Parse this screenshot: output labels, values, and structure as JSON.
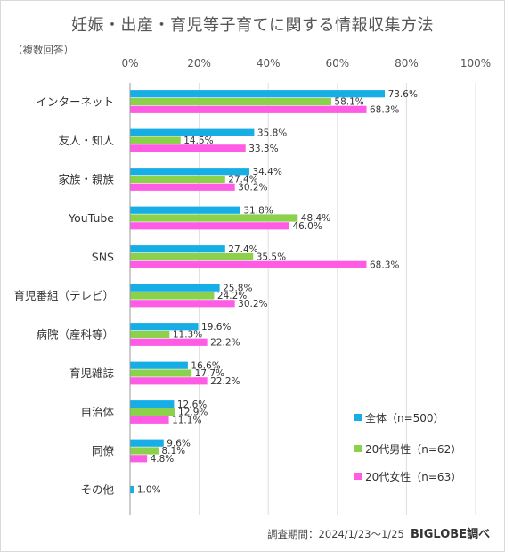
{
  "title": "妊娠・出産・育児等子育てに関する情報収集方法",
  "note": "（複数回答）",
  "footer": {
    "period": "調査期間：2024/1/23〜1/25",
    "brand": "BIGLOBE調べ"
  },
  "colors": {
    "total": "#17aee6",
    "male20s": "#8cd14b",
    "female20s": "#ff5ce6",
    "grid": "#dedede",
    "axis": "#999999",
    "text": "#444444"
  },
  "chart_data": {
    "type": "bar",
    "orientation": "horizontal",
    "title": "妊娠・出産・育児等子育てに関する情報収集方法",
    "xlim": [
      0,
      100
    ],
    "x_ticks": [
      "0%",
      "20%",
      "40%",
      "60%",
      "80%",
      "100%"
    ],
    "grid": true,
    "legend_position": "bottom-right",
    "categories": [
      "インターネット",
      "友人・知人",
      "家族・親族",
      "YouTube",
      "SNS",
      "育児番組（テレビ）",
      "病院（産科等）",
      "育児雑誌",
      "自治体",
      "同僚",
      "その他"
    ],
    "series": [
      {
        "name": "全体（n=500）",
        "color": "#17aee6",
        "values": [
          73.6,
          35.8,
          34.4,
          31.8,
          27.4,
          25.8,
          19.6,
          16.6,
          12.6,
          9.6,
          1.0
        ],
        "labels": [
          "73.6%",
          "35.8%",
          "34.4%",
          "31.8%",
          "27.4%",
          "25.8%",
          "19.6%",
          "16.6%",
          "12.6%",
          "9.6%",
          "1.0%"
        ]
      },
      {
        "name": "20代男性（n=62）",
        "color": "#8cd14b",
        "values": [
          58.1,
          14.5,
          27.4,
          48.4,
          35.5,
          24.2,
          11.3,
          17.7,
          12.9,
          8.1,
          null
        ],
        "labels": [
          "58.1%",
          "14.5%",
          "27.4%",
          "48.4%",
          "35.5%",
          "24.2%",
          "11.3%",
          "17.7%",
          "12.9%",
          "8.1%",
          ""
        ]
      },
      {
        "name": "20代女性（n=63）",
        "color": "#ff5ce6",
        "values": [
          68.3,
          33.3,
          30.2,
          46.0,
          68.3,
          30.2,
          22.2,
          22.2,
          11.1,
          4.8,
          null
        ],
        "labels": [
          "68.3%",
          "33.3%",
          "30.2%",
          "46.0%",
          "68.3%",
          "30.2%",
          "22.2%",
          "22.2%",
          "11.1%",
          "4.8%",
          ""
        ]
      }
    ]
  }
}
